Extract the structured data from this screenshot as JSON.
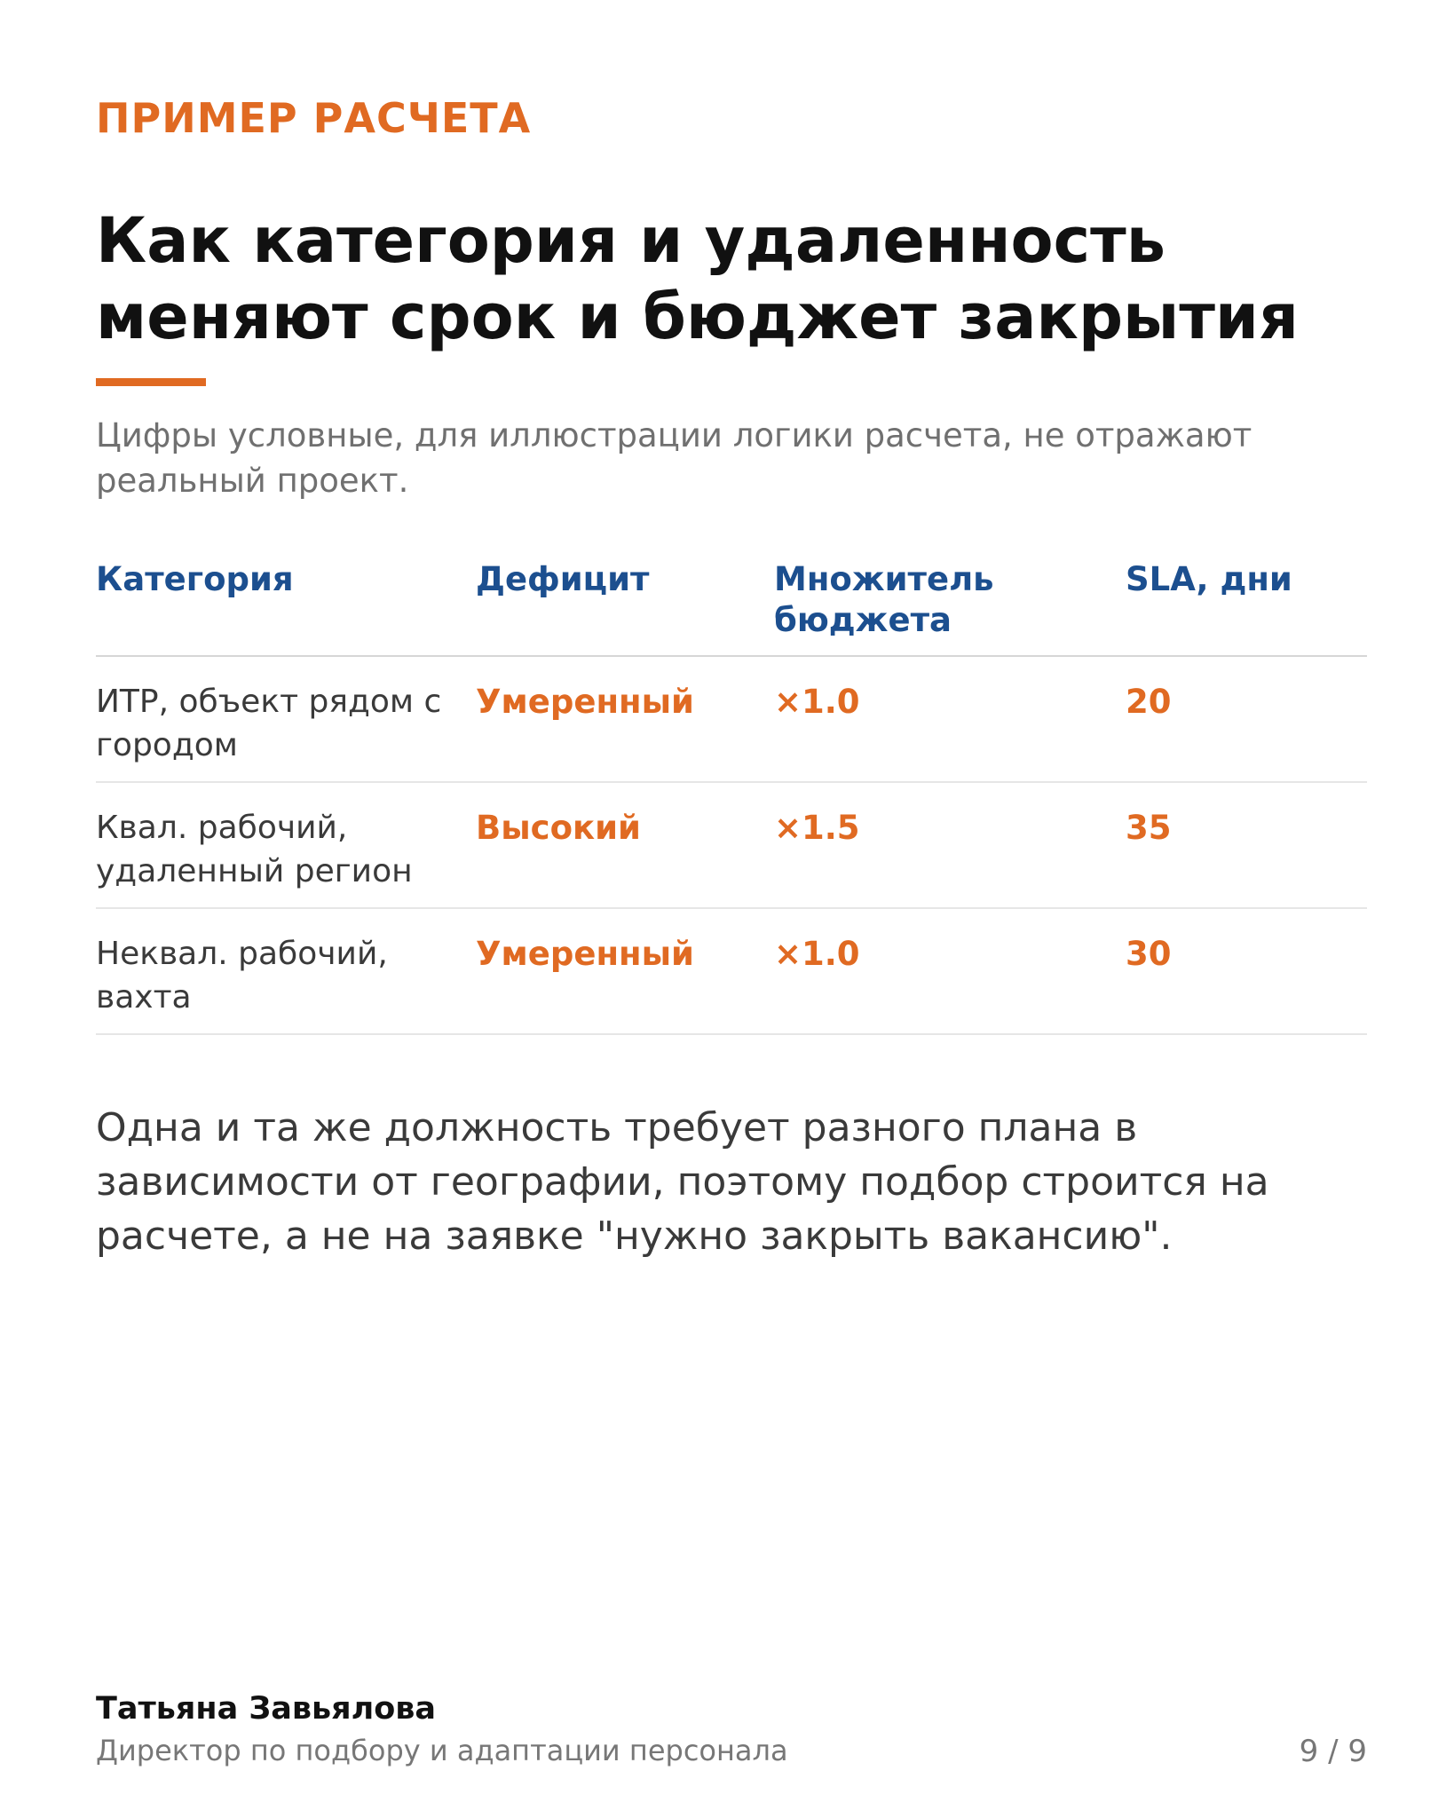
{
  "eyebrow": "ПРИМЕР РАСЧЕТА",
  "title": "Как категория и удаленность меняют срок и бюджет закрытия",
  "subtitle": "Цифры условные, для иллюстрации логики расчета, не отражают реальный проект.",
  "table": {
    "headers": [
      "Категория",
      "Дефицит",
      "Множитель бюджета",
      "SLA, дни"
    ],
    "rows": [
      {
        "category": "ИТР, объект рядом с городом",
        "deficit": "Умеренный",
        "multiplier": "×1.0",
        "sla": "20"
      },
      {
        "category": "Квал. рабочий, удаленный регион",
        "deficit": "Высокий",
        "multiplier": "×1.5",
        "sla": "35"
      },
      {
        "category": "Неквал. рабочий, вахта",
        "deficit": "Умеренный",
        "multiplier": "×1.0",
        "sla": "30"
      }
    ]
  },
  "body": "Одна и та же должность требует разного плана в зависимости от географии, поэтому подбор строится на расчете, а не на заявке \"нужно закрыть вакансию\".",
  "footer": {
    "name": "Татьяна Завьялова",
    "role": "Директор по подбору и адаптации персонала",
    "page": "9 / 9"
  },
  "colors": {
    "accent": "#e06a22",
    "header_blue": "#1c4f8f"
  }
}
